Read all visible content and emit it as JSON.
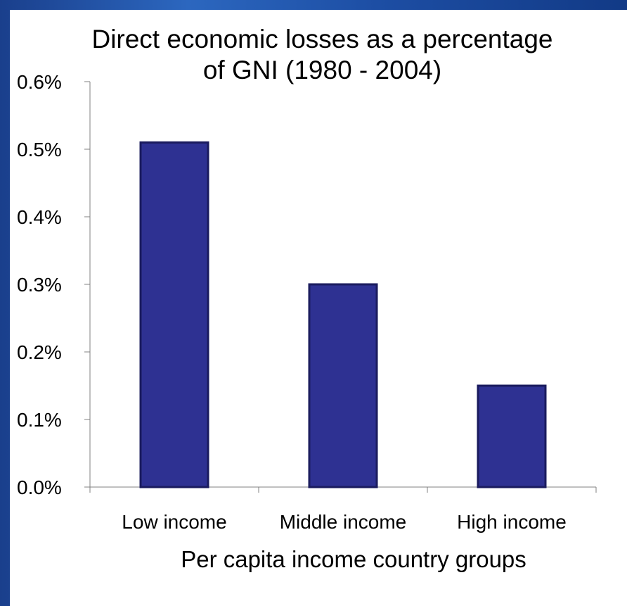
{
  "colors": {
    "bar_fill": "#2e3192",
    "bar_stroke": "#1a1b5e",
    "background_border": "#1d4fa0",
    "axis": "#808080"
  },
  "chart_data": {
    "type": "bar",
    "title": "Direct economic losses as a percentage\nof GNI (1980 - 2004)",
    "xlabel": "Per capita income country groups",
    "ylabel": "",
    "categories": [
      "Low income",
      "Middle income",
      "High income"
    ],
    "values": [
      0.51,
      0.3,
      0.15
    ],
    "ylim": [
      0,
      0.6
    ],
    "yticks": [
      "0.0%",
      "0.1%",
      "0.2%",
      "0.3%",
      "0.4%",
      "0.5%",
      "0.6%"
    ],
    "value_unit": "%",
    "grid": false,
    "legend": "none"
  }
}
